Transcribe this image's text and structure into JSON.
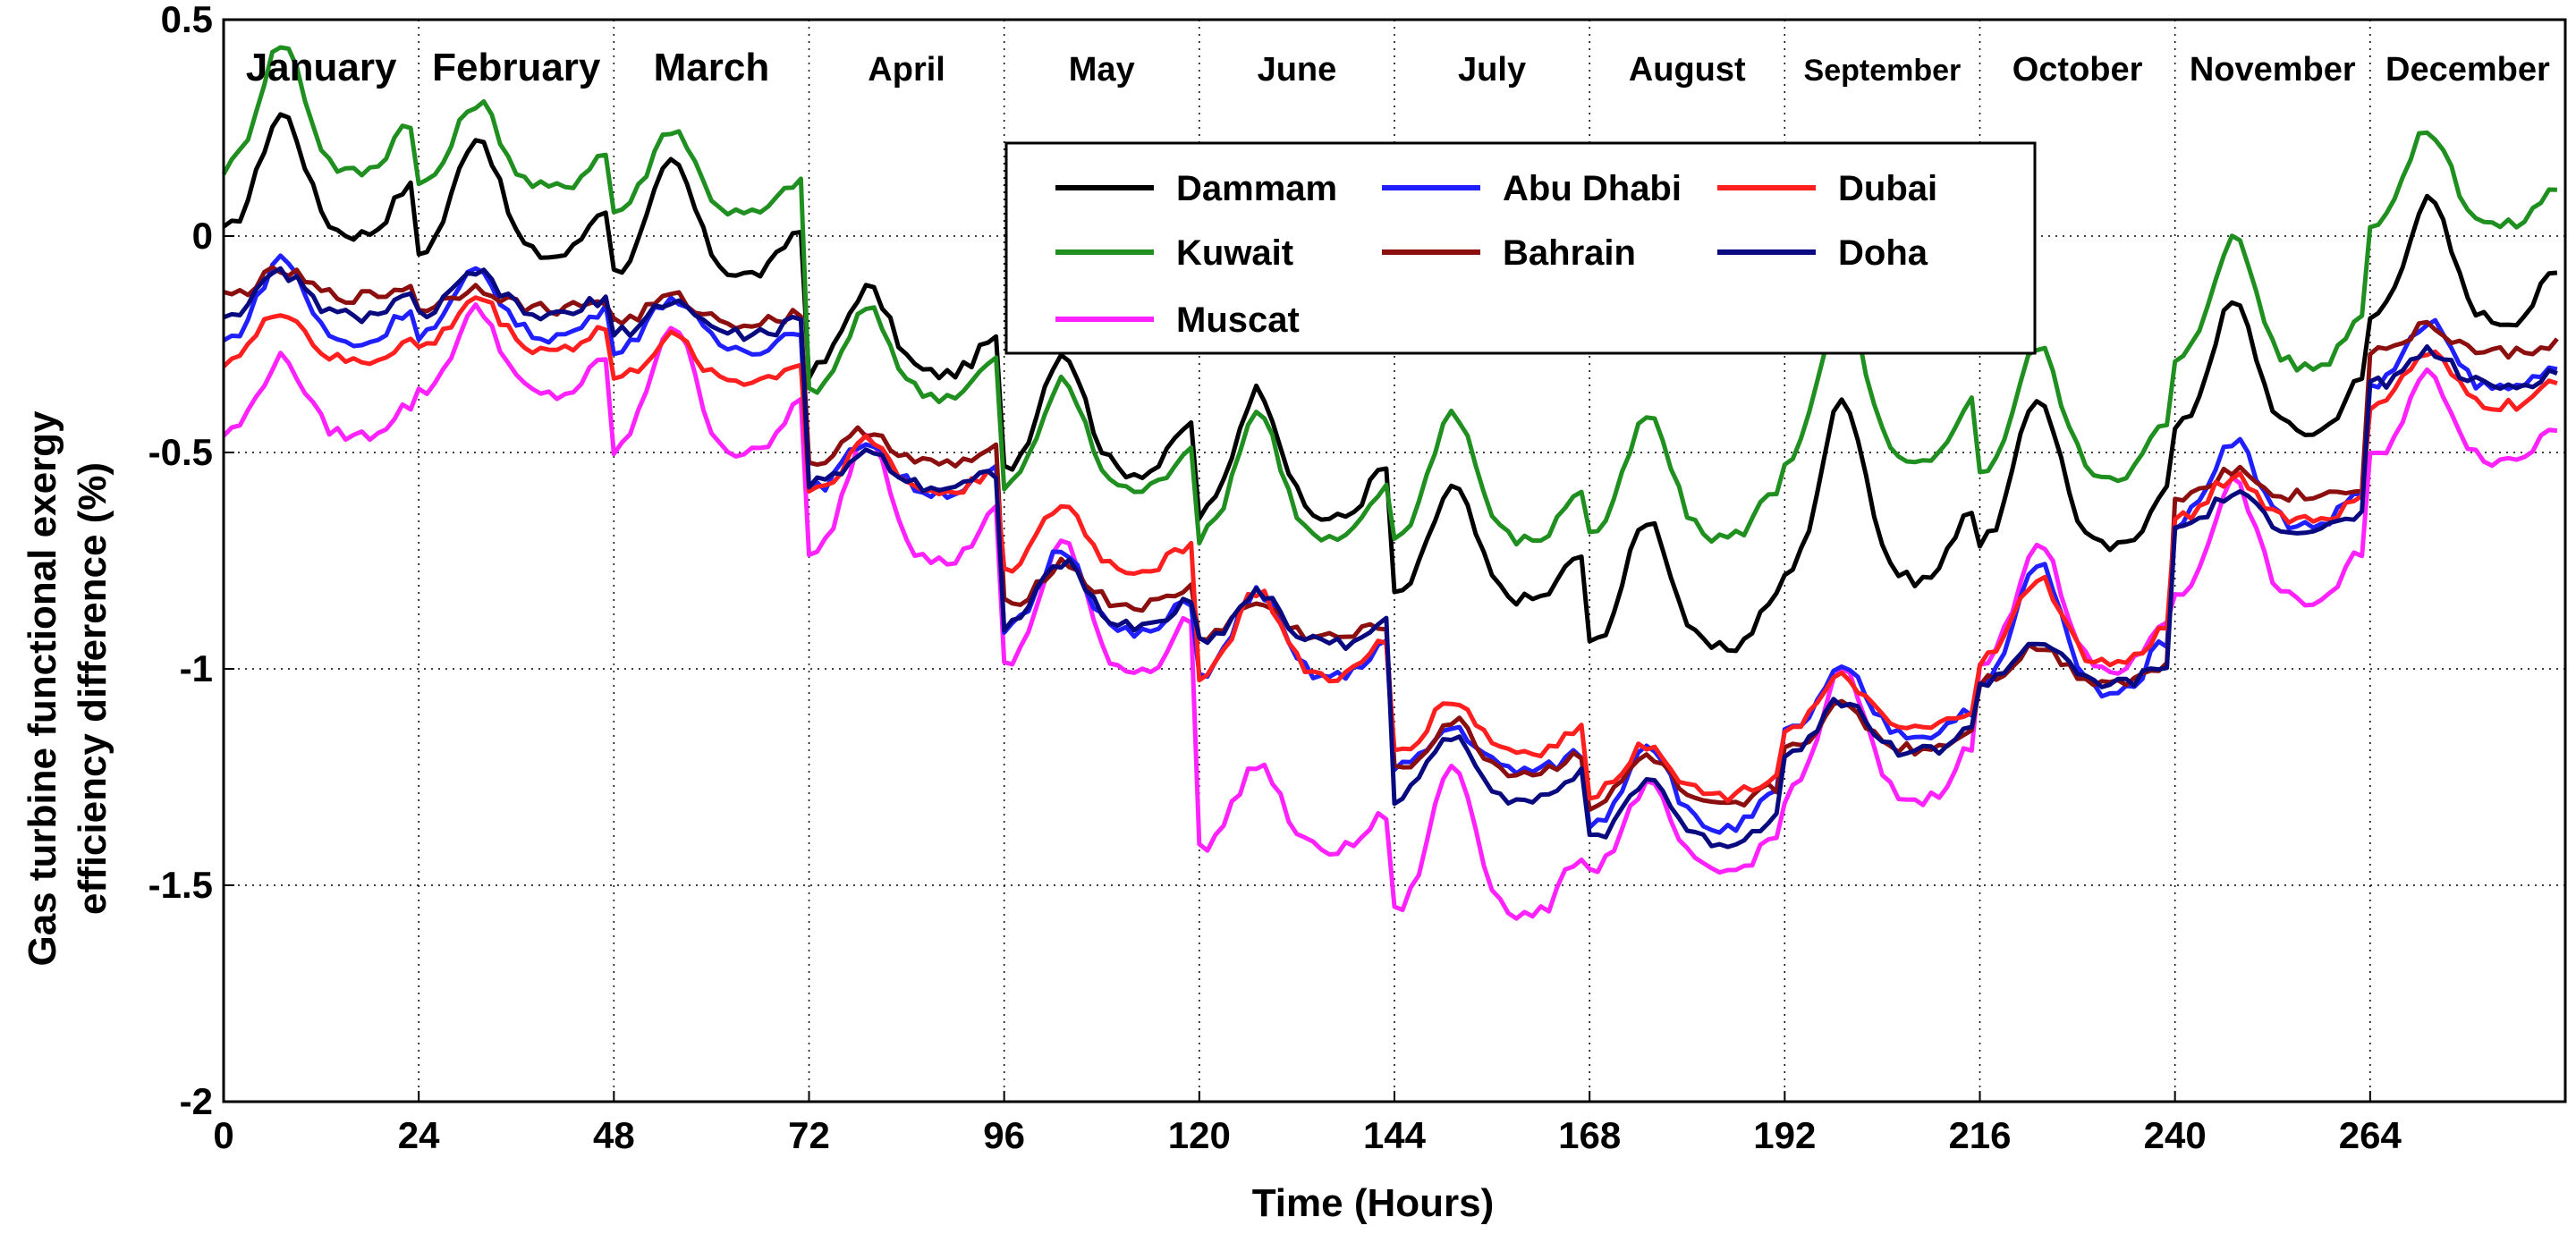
{
  "chart_data": {
    "type": "line",
    "title": "",
    "xlabel": "Time (Hours)",
    "ylabel_lines": [
      "Gas turbine functional exergy",
      "efficiency difference (%)"
    ],
    "xlim": [
      0,
      288
    ],
    "ylim": [
      -2,
      0.5
    ],
    "xticks": [
      0,
      24,
      48,
      72,
      96,
      120,
      144,
      168,
      192,
      216,
      240,
      264
    ],
    "yticks": [
      {
        "value": 0.5,
        "label": "0.5"
      },
      {
        "value": 0,
        "label": "0"
      },
      {
        "value": -0.5,
        "label": "-0.5"
      },
      {
        "value": -1,
        "label": "-1"
      },
      {
        "value": -1.5,
        "label": "-1.5"
      },
      {
        "value": -2,
        "label": "-2"
      }
    ],
    "grid": true,
    "months": [
      "January",
      "February",
      "March",
      "April",
      "May",
      "June",
      "July",
      "August",
      "September",
      "October",
      "November",
      "December"
    ],
    "legend": [
      {
        "name": "Dammam",
        "color": "#000000"
      },
      {
        "name": "Abu Dhabi",
        "color": "#1f1fff"
      },
      {
        "name": "Dubai",
        "color": "#ff1f1f"
      },
      {
        "name": "Kuwait",
        "color": "#1f8f1f"
      },
      {
        "name": "Bahrain",
        "color": "#8b0f0f"
      },
      {
        "name": "Doha",
        "color": "#0a0a80"
      },
      {
        "name": "Muscat",
        "color": "#ff22ff"
      }
    ],
    "series": [
      {
        "name": "Dammam",
        "color": "#000000",
        "base": [
          0.1,
          0.05,
          0.0,
          -0.25,
          -0.45,
          -0.55,
          -0.75,
          -0.85,
          -0.65,
          -0.6,
          -0.35,
          -0.1
        ],
        "amp": [
          0.28,
          0.28,
          0.26,
          0.2,
          0.28,
          0.3,
          0.26,
          0.3,
          0.42,
          0.35,
          0.3,
          0.28
        ]
      },
      {
        "name": "Kuwait",
        "color": "#1f8f1f",
        "base": [
          0.25,
          0.18,
          0.12,
          -0.3,
          -0.5,
          -0.6,
          -0.6,
          -0.6,
          -0.4,
          -0.45,
          -0.2,
          0.1
        ],
        "amp": [
          0.3,
          0.2,
          0.2,
          0.2,
          0.25,
          0.3,
          0.3,
          0.28,
          0.38,
          0.3,
          0.3,
          0.22
        ]
      },
      {
        "name": "Muscat",
        "color": "#ff22ff",
        "base": [
          -0.4,
          -0.3,
          -0.4,
          -0.65,
          -0.9,
          -1.35,
          -1.45,
          -1.4,
          -1.2,
          -0.9,
          -0.75,
          -0.45
        ],
        "amp": [
          0.18,
          0.2,
          0.3,
          0.3,
          0.3,
          0.2,
          0.35,
          0.2,
          0.3,
          0.3,
          0.28,
          0.2
        ]
      },
      {
        "name": "Abu Dhabi",
        "color": "#1f1fff",
        "base": [
          -0.18,
          -0.18,
          -0.22,
          -0.55,
          -0.85,
          -0.95,
          -1.2,
          -1.3,
          -1.1,
          -0.95,
          -0.6,
          -0.3
        ],
        "amp": [
          0.2,
          0.15,
          0.12,
          0.12,
          0.2,
          0.2,
          0.1,
          0.2,
          0.15,
          0.3,
          0.2,
          0.15
        ]
      },
      {
        "name": "Bahrain",
        "color": "#8b0f0f",
        "base": [
          -0.12,
          -0.15,
          -0.18,
          -0.5,
          -0.82,
          -0.9,
          -1.2,
          -1.28,
          -1.15,
          -1.0,
          -0.58,
          -0.25
        ],
        "amp": [
          0.06,
          0.05,
          0.06,
          0.08,
          0.1,
          0.08,
          0.12,
          0.12,
          0.1,
          0.08,
          0.06,
          0.06
        ]
      },
      {
        "name": "Dubai",
        "color": "#ff1f1f",
        "base": [
          -0.25,
          -0.22,
          -0.3,
          -0.55,
          -0.72,
          -0.95,
          -1.15,
          -1.25,
          -1.1,
          -0.92,
          -0.62,
          -0.35
        ],
        "amp": [
          0.12,
          0.12,
          0.1,
          0.12,
          0.15,
          0.2,
          0.12,
          0.12,
          0.12,
          0.2,
          0.1,
          0.12
        ]
      },
      {
        "name": "Doha",
        "color": "#0a0a80",
        "base": [
          -0.15,
          -0.15,
          -0.2,
          -0.55,
          -0.85,
          -0.9,
          -1.25,
          -1.35,
          -1.15,
          -1.0,
          -0.65,
          -0.32
        ],
        "amp": [
          0.1,
          0.1,
          0.08,
          0.08,
          0.15,
          0.12,
          0.15,
          0.15,
          0.12,
          0.1,
          0.08,
          0.08
        ]
      }
    ]
  }
}
